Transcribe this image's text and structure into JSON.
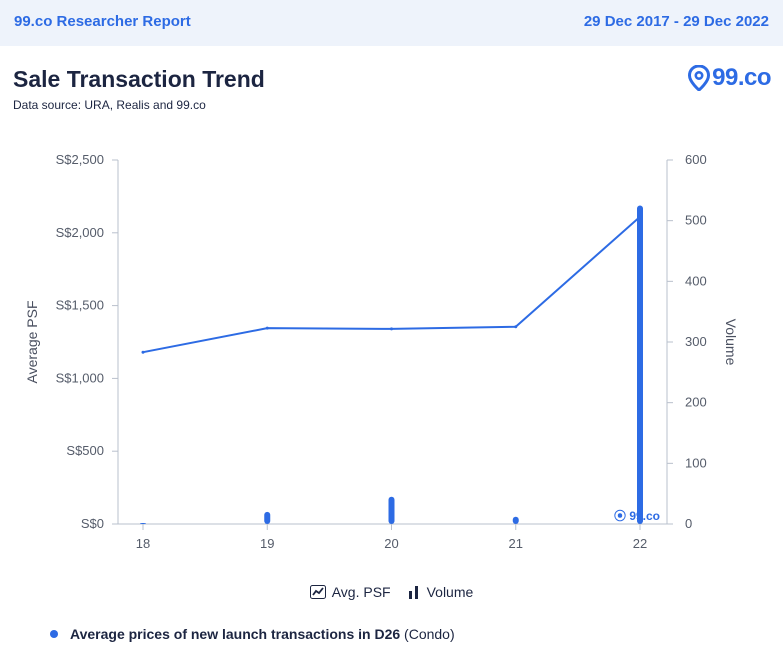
{
  "header": {
    "report_label": "99.co Researcher Report",
    "date_range": "29 Dec 2017 - 29 Dec 2022"
  },
  "title": "Sale Transaction Trend",
  "subtitle": "Data source: URA, Realis and 99.co",
  "logo_text": "99.co",
  "watermark_text": "99.co",
  "legend": {
    "psf_label": "Avg. PSF",
    "volume_label": "Volume"
  },
  "footnote": {
    "prefix": "Average prices of new launch transactions in D26",
    "suffix": " (Condo)"
  },
  "colors": {
    "accent": "#2d6be4",
    "dark": "#1c2541",
    "axis": "#b9c0cc"
  },
  "chart_data": {
    "type": "line",
    "categories": [
      "18",
      "19",
      "20",
      "21",
      "22"
    ],
    "ylabel": "Average PSF",
    "y2label": "Volume",
    "ylim": [
      0,
      2500
    ],
    "y2lim": [
      0,
      600
    ],
    "yticks": [
      "S$0",
      "S$500",
      "S$1,000",
      "S$1,500",
      "S$2,000",
      "S$2,500"
    ],
    "y2ticks": [
      "0",
      "100",
      "200",
      "300",
      "400",
      "500",
      "600"
    ],
    "series": [
      {
        "name": "Avg. PSF",
        "type": "line",
        "axis": "left",
        "values": [
          1180,
          1345,
          1340,
          1355,
          2110
        ]
      },
      {
        "name": "Volume",
        "type": "bar",
        "axis": "right",
        "values": [
          1,
          20,
          45,
          12,
          525
        ]
      }
    ]
  }
}
